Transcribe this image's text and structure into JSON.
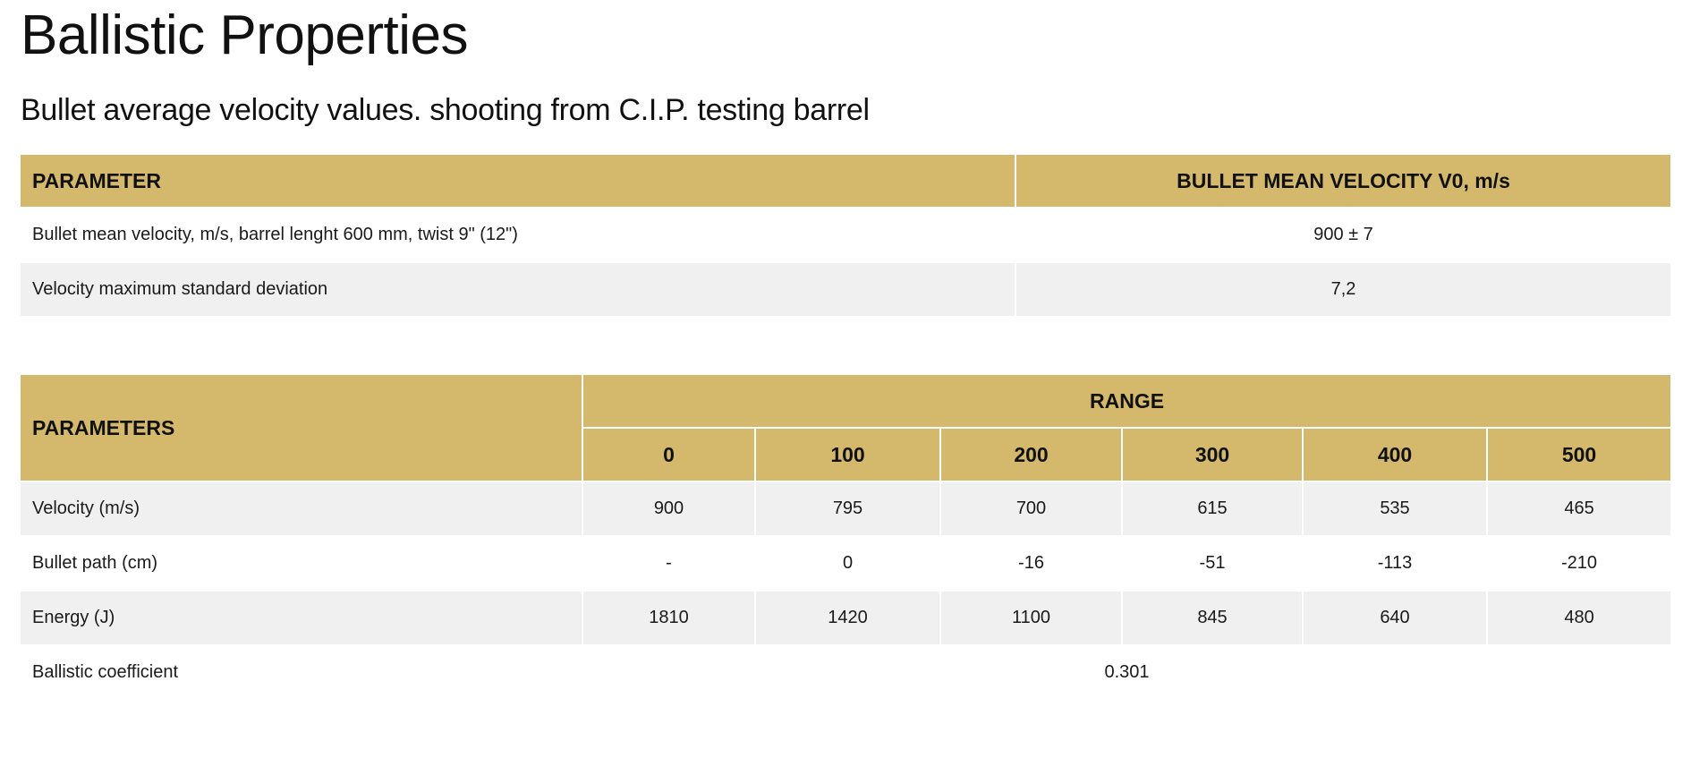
{
  "title": "Ballistic Properties",
  "subtitle": "Bullet average velocity values. shooting from C.I.P. testing barrel",
  "velocity_table": {
    "headers": {
      "parameter": "PARAMETER",
      "velocity": "BULLET MEAN VELOCITY V0, m/s"
    },
    "rows": [
      {
        "label": "Bullet mean velocity, m/s, barrel lenght 600 mm, twist 9\" (12\")",
        "value": "900 ± 7"
      },
      {
        "label": "Velocity maximum standard deviation",
        "value": "7,2"
      }
    ]
  },
  "range_table": {
    "headers": {
      "parameters": "PARAMETERS",
      "range": "RANGE",
      "distances": [
        "0",
        "100",
        "200",
        "300",
        "400",
        "500"
      ]
    },
    "rows": [
      {
        "label": "Velocity (m/s)",
        "values": [
          "900",
          "795",
          "700",
          "615",
          "535",
          "465"
        ]
      },
      {
        "label": "Bullet path (cm)",
        "values": [
          "-",
          "0",
          "-16",
          "-51",
          "-113",
          "-210"
        ]
      },
      {
        "label": "Energy (J)",
        "values": [
          "1810",
          "1420",
          "1100",
          "845",
          "640",
          "480"
        ]
      }
    ],
    "ballistic_coefficient": {
      "label": "Ballistic coefficient",
      "value": "0.301"
    }
  }
}
